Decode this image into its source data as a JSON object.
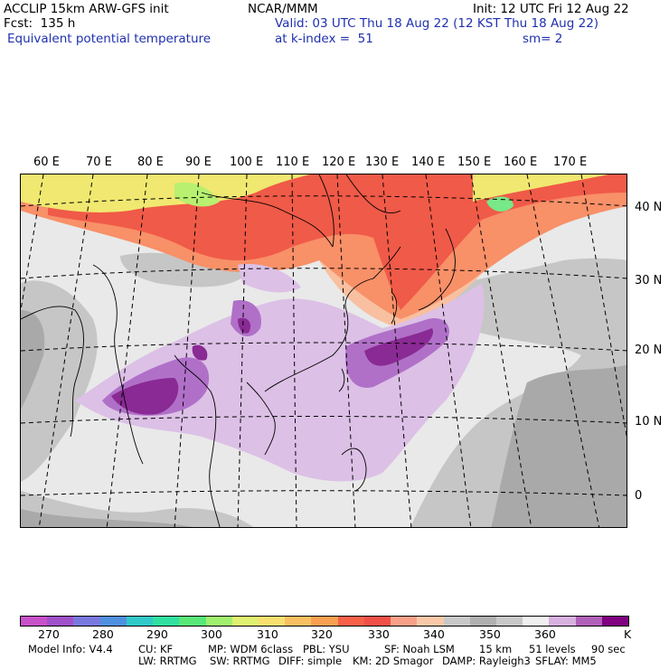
{
  "header": {
    "model": "ACCLIP 15km ARW-GFS init",
    "forecast": "Fcst:  135 h",
    "field": "Equivalent potential temperature",
    "center": "NCAR/MMM",
    "valid": "Valid: 03 UTC Thu 18 Aug 22 (12 KST Thu 18 Aug 22)",
    "level": "at k-index =  51",
    "init": "Init: 12 UTC Fri 12 Aug 22",
    "smooth": "sm= 2"
  },
  "map": {
    "lon_labels": [
      "60 E",
      "70 E",
      "80 E",
      "90 E",
      "100 E",
      "110 E",
      "120 E",
      "130 E",
      "140 E",
      "150 E",
      "160 E",
      "170 E"
    ],
    "lat_labels": [
      "40 N",
      "30 N",
      "20 N",
      "10 N",
      "0"
    ],
    "colors": {
      "background": "#e9e9e9",
      "gray": "#c6c6c6",
      "darkgray": "#a9a9a9",
      "light_purple": "#dcc0e6",
      "purple": "#b070c8",
      "dark_purple": "#8a2a94",
      "red": "#f05a48",
      "orange": "#f89068",
      "peach": "#f8c0a0",
      "yellow": "#f0e870",
      "lime": "#b8f070",
      "green": "#78e888"
    }
  },
  "colorbar": {
    "colors": [
      "#c850c8",
      "#a050c8",
      "#7878e0",
      "#5090e0",
      "#30c8c8",
      "#30e0a0",
      "#58e878",
      "#a0f070",
      "#e0f070",
      "#f8e070",
      "#f8c060",
      "#f8a050",
      "#f86048",
      "#f05048",
      "#f8a088",
      "#f8c8a8",
      "#c8c8c8",
      "#b0b0b0",
      "#c8c8c8",
      "#f0f0f0",
      "#d8b0e0",
      "#b060b8",
      "#800080"
    ],
    "labels": [
      "270",
      "280",
      "290",
      "300",
      "310",
      "320",
      "330",
      "340",
      "350",
      "360",
      "K"
    ]
  },
  "footer": {
    "line1": [
      "Model Info: V4.4",
      "CU: KF",
      "MP: WDM 6class",
      "PBL: YSU",
      "SF: Noah LSM",
      "15 km",
      "51 levels",
      "90 sec"
    ],
    "line2": [
      "LW: RRTMG",
      "SW: RRTMG",
      "DIFF: simple",
      "KM: 2D Smagor",
      "DAMP: Rayleigh3",
      "SFLAY: MM5"
    ]
  }
}
